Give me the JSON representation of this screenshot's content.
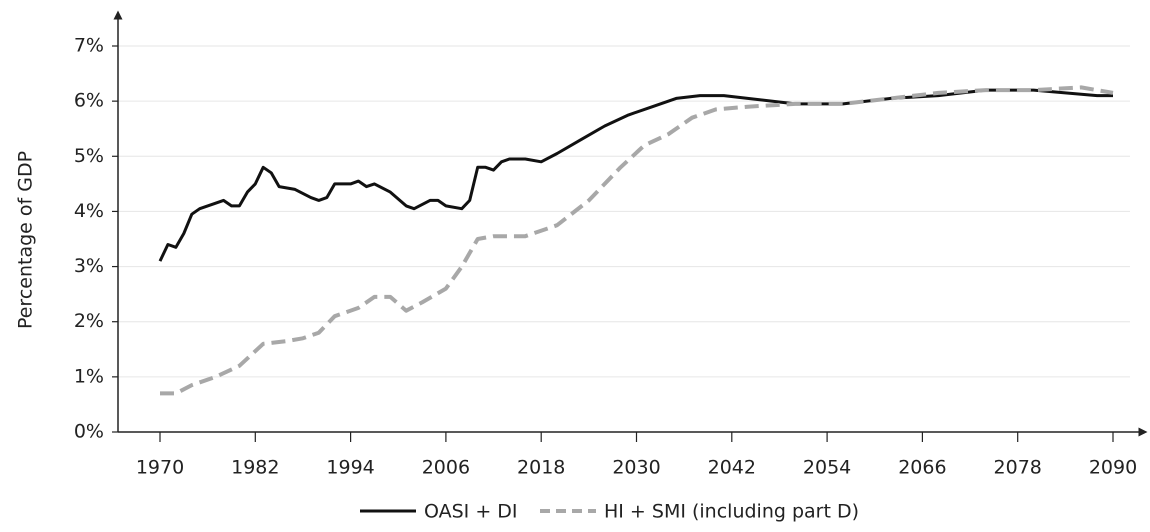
{
  "chart_data": {
    "type": "line",
    "ylabel": "Percentage of GDP",
    "xlim": [
      1970,
      2090
    ],
    "xticks": [
      1970,
      1982,
      1994,
      2006,
      2018,
      2030,
      2042,
      2054,
      2066,
      2078,
      2090
    ],
    "ylim": [
      0,
      7
    ],
    "yticks": [
      {
        "value": 0,
        "label": "0%"
      },
      {
        "value": 1,
        "label": "1%"
      },
      {
        "value": 2,
        "label": "2%"
      },
      {
        "value": 3,
        "label": "3%"
      },
      {
        "value": 4,
        "label": "4%"
      },
      {
        "value": 5,
        "label": "5%"
      },
      {
        "value": 6,
        "label": "6%"
      },
      {
        "value": 7,
        "label": "7%"
      }
    ],
    "grid": true,
    "legend": "bottom",
    "series": [
      {
        "name": "OASI + DI",
        "color": "#111111",
        "dash": "solid",
        "x": [
          1970,
          1971,
          1972,
          1973,
          1974,
          1975,
          1977,
          1978,
          1979,
          1980,
          1981,
          1982,
          1983,
          1984,
          1985,
          1987,
          1989,
          1990,
          1991,
          1992,
          1994,
          1995,
          1996,
          1997,
          1999,
          2001,
          2002,
          2004,
          2005,
          2006,
          2008,
          2009,
          2010,
          2011,
          2012,
          2013,
          2014,
          2016,
          2018,
          2020,
          2023,
          2026,
          2029,
          2032,
          2035,
          2038,
          2041,
          2044,
          2050,
          2056,
          2062,
          2068,
          2074,
          2080,
          2084,
          2088,
          2090
        ],
        "values": [
          3.1,
          3.4,
          3.35,
          3.6,
          3.95,
          4.05,
          4.15,
          4.2,
          4.1,
          4.1,
          4.35,
          4.5,
          4.8,
          4.7,
          4.45,
          4.4,
          4.25,
          4.2,
          4.25,
          4.5,
          4.5,
          4.55,
          4.45,
          4.5,
          4.35,
          4.1,
          4.05,
          4.2,
          4.2,
          4.1,
          4.05,
          4.2,
          4.8,
          4.8,
          4.75,
          4.9,
          4.95,
          4.95,
          4.9,
          5.05,
          5.3,
          5.55,
          5.75,
          5.9,
          6.05,
          6.1,
          6.1,
          6.05,
          5.95,
          5.95,
          6.05,
          6.1,
          6.2,
          6.2,
          6.15,
          6.1,
          6.1
        ]
      },
      {
        "name": "HI + SMI (including part D)",
        "color": "#a8a8a8",
        "dash": "dashed",
        "x": [
          1970,
          1972,
          1974,
          1977,
          1980,
          1983,
          1986,
          1988,
          1990,
          1992,
          1995,
          1997,
          1999,
          2001,
          2003,
          2006,
          2008,
          2010,
          2012,
          2016,
          2020,
          2024,
          2028,
          2031,
          2034,
          2037,
          2040,
          2044,
          2050,
          2056,
          2062,
          2068,
          2074,
          2080,
          2086,
          2090
        ],
        "values": [
          0.7,
          0.7,
          0.85,
          1.0,
          1.2,
          1.6,
          1.65,
          1.7,
          1.8,
          2.1,
          2.25,
          2.45,
          2.45,
          2.2,
          2.35,
          2.6,
          3.0,
          3.5,
          3.55,
          3.55,
          3.75,
          4.2,
          4.8,
          5.2,
          5.4,
          5.7,
          5.85,
          5.9,
          5.95,
          5.95,
          6.05,
          6.15,
          6.2,
          6.2,
          6.25,
          6.15
        ]
      }
    ]
  }
}
